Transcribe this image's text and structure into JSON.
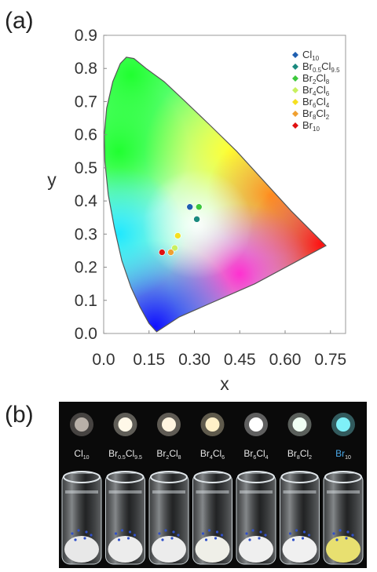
{
  "panel_a_label": "(a)",
  "panel_b_label": "(b)",
  "chart_data": {
    "type": "scatter",
    "title": "",
    "xlabel": "x",
    "ylabel": "y",
    "xlim": [
      0.0,
      0.8
    ],
    "ylim": [
      0.0,
      0.9
    ],
    "x_ticks": [
      "0.0",
      "0.15",
      "0.30",
      "0.45",
      "0.60",
      "0.75"
    ],
    "x_tick_values": [
      0.0,
      0.15,
      0.3,
      0.45,
      0.6,
      0.75
    ],
    "y_ticks": [
      "0.0",
      "0.1",
      "0.2",
      "0.3",
      "0.4",
      "0.5",
      "0.6",
      "0.7",
      "0.8",
      "0.9"
    ],
    "y_tick_values": [
      0.0,
      0.1,
      0.2,
      0.3,
      0.4,
      0.5,
      0.6,
      0.7,
      0.8,
      0.9
    ],
    "grid": false,
    "legend_position": "top-right",
    "series": [
      {
        "name": "Cl10",
        "label_main": "Cl",
        "label_sub": "10",
        "color": "#1f5fb0",
        "x": 0.285,
        "y": 0.382
      },
      {
        "name": "Br0.5Cl9.5",
        "label_main": "Br",
        "label_sub": "0.5",
        "label_main2": "Cl",
        "label_sub2": "9.5",
        "color": "#1a8a7e",
        "x": 0.308,
        "y": 0.345
      },
      {
        "name": "Br2Cl8",
        "label_main": "Br",
        "label_sub": "2",
        "label_main2": "Cl",
        "label_sub2": "8",
        "color": "#3cc83c",
        "x": 0.315,
        "y": 0.382
      },
      {
        "name": "Br4Cl6",
        "label_main": "Br",
        "label_sub": "4",
        "label_main2": "Cl",
        "label_sub2": "6",
        "color": "#c8f060",
        "x": 0.235,
        "y": 0.258
      },
      {
        "name": "Br6Cl4",
        "label_main": "Br",
        "label_sub": "6",
        "label_main2": "Cl",
        "label_sub2": "4",
        "color": "#f5e020",
        "x": 0.245,
        "y": 0.295
      },
      {
        "name": "Br8Cl2",
        "label_main": "Br",
        "label_sub": "8",
        "label_main2": "Cl",
        "label_sub2": "2",
        "color": "#f0a030",
        "x": 0.222,
        "y": 0.245
      },
      {
        "name": "Br10",
        "label_main": "Br",
        "label_sub": "10",
        "color": "#e01010",
        "x": 0.193,
        "y": 0.245
      }
    ]
  },
  "photo": {
    "background": "#0a0a0a",
    "samples": [
      {
        "main": "Cl",
        "sub": "10",
        "main2": "",
        "sub2": "",
        "glow": "#b8b0a8",
        "powder": "#e8e8e8",
        "label_color": "#e6e6e6"
      },
      {
        "main": "Br",
        "sub": "0.5",
        "main2": "Cl",
        "sub2": "9.5",
        "glow": "#fff8e8",
        "powder": "#ececec",
        "label_color": "#e6e6e6"
      },
      {
        "main": "Br",
        "sub": "2",
        "main2": "Cl",
        "sub2": "8",
        "glow": "#fff4e0",
        "powder": "#ececec",
        "label_color": "#e6e6e6"
      },
      {
        "main": "Br",
        "sub": "4",
        "main2": "Cl",
        "sub2": "6",
        "glow": "#fff0c8",
        "powder": "#efefe8",
        "label_color": "#e6e6e6"
      },
      {
        "main": "Br",
        "sub": "6",
        "main2": "Cl",
        "sub2": "4",
        "glow": "#ffffff",
        "powder": "#efefef",
        "label_color": "#e6e6e6"
      },
      {
        "main": "Br",
        "sub": "8",
        "main2": "Cl",
        "sub2": "2",
        "glow": "#f0fff4",
        "powder": "#f0f0f0",
        "label_color": "#e6e6e6"
      },
      {
        "main": "Br",
        "sub": "10",
        "main2": "",
        "sub2": "",
        "glow": "#7ff0f8",
        "powder": "#e8e070",
        "label_color": "#4aa8e8"
      }
    ]
  }
}
